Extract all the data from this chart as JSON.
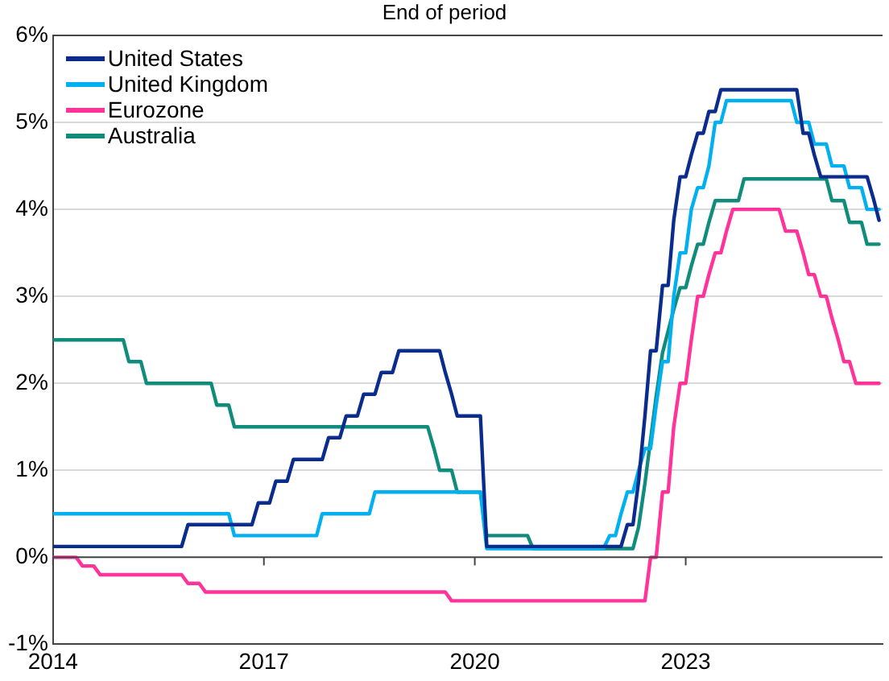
{
  "chart_data": {
    "type": "line",
    "title": "End of period",
    "xlim": [
      2014,
      2025.8
    ],
    "xticks": [
      2014,
      2017,
      2020,
      2023
    ],
    "ylim": [
      -1,
      6
    ],
    "yticks": [
      {
        "value": -1,
        "label": "-1%"
      },
      {
        "value": 0,
        "label": "0%"
      },
      {
        "value": 1,
        "label": "1%"
      },
      {
        "value": 2,
        "label": "2%"
      },
      {
        "value": 3,
        "label": "3%"
      },
      {
        "value": 4,
        "label": "4%"
      },
      {
        "value": 5,
        "label": "5%"
      },
      {
        "value": 6,
        "label": "6%"
      }
    ],
    "grid": "y",
    "legend": "top left",
    "line_style": "solid",
    "series": [
      {
        "name": "United States",
        "color": "#0a2c8c",
        "x": [
          2014,
          2015.83,
          2015.92,
          2016.83,
          2016.92,
          2017.08,
          2017.17,
          2017.33,
          2017.42,
          2017.83,
          2017.92,
          2018.08,
          2018.17,
          2018.33,
          2018.42,
          2018.58,
          2018.67,
          2018.83,
          2018.92,
          2019.5,
          2019.58,
          2019.67,
          2019.75,
          2020.08,
          2020.17,
          2022.08,
          2022.17,
          2022.25,
          2022.33,
          2022.42,
          2022.5,
          2022.58,
          2022.67,
          2022.75,
          2022.83,
          2022.92,
          2023.0,
          2023.08,
          2023.17,
          2023.25,
          2023.33,
          2023.42,
          2023.5,
          2024.58,
          2024.67,
          2024.75,
          2024.83,
          2024.92,
          2025.58,
          2025.67,
          2025.75
        ],
        "values": [
          0.125,
          0.125,
          0.375,
          0.375,
          0.625,
          0.625,
          0.875,
          0.875,
          1.125,
          1.125,
          1.375,
          1.375,
          1.625,
          1.625,
          1.875,
          1.875,
          2.125,
          2.125,
          2.375,
          2.375,
          2.125,
          1.875,
          1.625,
          1.625,
          0.125,
          0.125,
          0.375,
          0.375,
          0.875,
          1.625,
          2.375,
          2.375,
          3.125,
          3.125,
          3.875,
          4.375,
          4.375,
          4.625,
          4.875,
          4.875,
          5.125,
          5.125,
          5.375,
          5.375,
          4.875,
          4.875,
          4.625,
          4.375,
          4.375,
          4.125,
          3.875
        ]
      },
      {
        "name": "United Kingdom",
        "color": "#00b0f0",
        "x": [
          2014,
          2016.5,
          2016.58,
          2017.75,
          2017.83,
          2018.5,
          2018.58,
          2020.08,
          2020.17,
          2021.83,
          2021.92,
          2022.0,
          2022.08,
          2022.17,
          2022.25,
          2022.33,
          2022.42,
          2022.5,
          2022.58,
          2022.67,
          2022.75,
          2022.83,
          2022.92,
          2023.0,
          2023.08,
          2023.17,
          2023.25,
          2023.33,
          2023.42,
          2023.5,
          2023.58,
          2024.5,
          2024.58,
          2024.75,
          2024.83,
          2025.0,
          2025.08,
          2025.25,
          2025.33,
          2025.5,
          2025.58,
          2025.75
        ],
        "values": [
          0.5,
          0.5,
          0.25,
          0.25,
          0.5,
          0.5,
          0.75,
          0.75,
          0.1,
          0.1,
          0.25,
          0.25,
          0.5,
          0.75,
          0.75,
          1.0,
          1.25,
          1.25,
          1.75,
          2.25,
          2.25,
          3.0,
          3.5,
          3.5,
          4.0,
          4.25,
          4.25,
          4.5,
          5.0,
          5.0,
          5.25,
          5.25,
          5.0,
          5.0,
          4.75,
          4.75,
          4.5,
          4.5,
          4.25,
          4.25,
          4.0,
          4.0
        ]
      },
      {
        "name": "Eurozone",
        "color": "#ff3399",
        "x": [
          2014,
          2014.33,
          2014.42,
          2014.58,
          2014.67,
          2015.83,
          2015.92,
          2016.08,
          2016.17,
          2019.58,
          2019.67,
          2022.42,
          2022.5,
          2022.58,
          2022.67,
          2022.75,
          2022.83,
          2022.92,
          2023.0,
          2023.08,
          2023.17,
          2023.25,
          2023.33,
          2023.42,
          2023.5,
          2023.58,
          2023.67,
          2024.33,
          2024.42,
          2024.58,
          2024.67,
          2024.75,
          2024.83,
          2024.92,
          2025.0,
          2025.08,
          2025.17,
          2025.25,
          2025.33,
          2025.42,
          2025.75
        ],
        "values": [
          0,
          0,
          -0.1,
          -0.1,
          -0.2,
          -0.2,
          -0.3,
          -0.3,
          -0.4,
          -0.4,
          -0.5,
          -0.5,
          0,
          0,
          0.75,
          0.75,
          1.5,
          2.0,
          2.0,
          2.5,
          3.0,
          3.0,
          3.25,
          3.5,
          3.5,
          3.75,
          4.0,
          4.0,
          3.75,
          3.75,
          3.5,
          3.25,
          3.25,
          3.0,
          3.0,
          2.75,
          2.5,
          2.25,
          2.25,
          2.0,
          2.0
        ]
      },
      {
        "name": "Australia",
        "color": "#0f8c7c",
        "x": [
          2014,
          2015.0,
          2015.08,
          2015.25,
          2015.33,
          2016.25,
          2016.33,
          2016.5,
          2016.58,
          2019.33,
          2019.42,
          2019.5,
          2019.67,
          2019.75,
          2020.08,
          2020.17,
          2020.75,
          2020.83,
          2022.25,
          2022.33,
          2022.42,
          2022.5,
          2022.58,
          2022.67,
          2022.75,
          2022.83,
          2022.92,
          2023.0,
          2023.08,
          2023.17,
          2023.25,
          2023.33,
          2023.42,
          2023.75,
          2023.83,
          2025.0,
          2025.08,
          2025.25,
          2025.33,
          2025.5,
          2025.58,
          2025.75
        ],
        "values": [
          2.5,
          2.5,
          2.25,
          2.25,
          2.0,
          2.0,
          1.75,
          1.75,
          1.5,
          1.5,
          1.25,
          1.0,
          1.0,
          0.75,
          0.75,
          0.25,
          0.25,
          0.1,
          0.1,
          0.35,
          0.85,
          1.35,
          1.85,
          2.35,
          2.6,
          2.85,
          3.1,
          3.1,
          3.35,
          3.6,
          3.6,
          3.85,
          4.1,
          4.1,
          4.35,
          4.35,
          4.1,
          4.1,
          3.85,
          3.85,
          3.6,
          3.6
        ]
      }
    ]
  }
}
